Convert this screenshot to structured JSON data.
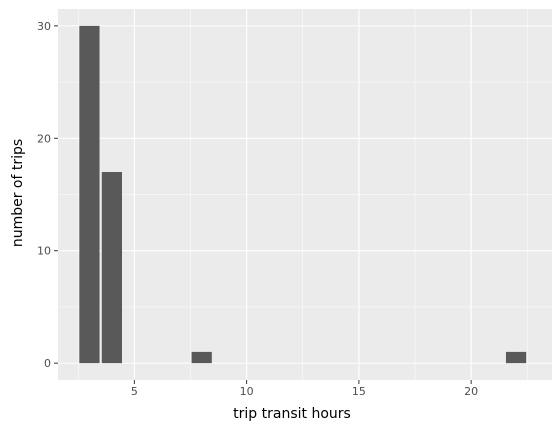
{
  "chart_data": {
    "type": "bar",
    "xlabel": "trip transit hours",
    "ylabel": "number of trips",
    "xlim": [
      1.6,
      23.6
    ],
    "ylim": [
      -1.5,
      31.5
    ],
    "xticks": [
      5,
      10,
      15,
      20
    ],
    "yticks": [
      0,
      10,
      20,
      30
    ],
    "grid": true,
    "bar_width": 0.9,
    "bars": [
      {
        "x": 3,
        "value": 30
      },
      {
        "x": 4,
        "value": 17
      },
      {
        "x": 8,
        "value": 1
      },
      {
        "x": 22,
        "value": 1
      }
    ],
    "colors": {
      "panel": "#ebebeb",
      "grid_major": "#ffffff",
      "bar": "#595959",
      "tick_text": "#4d4d4d",
      "tick_mark": "#333333"
    }
  }
}
